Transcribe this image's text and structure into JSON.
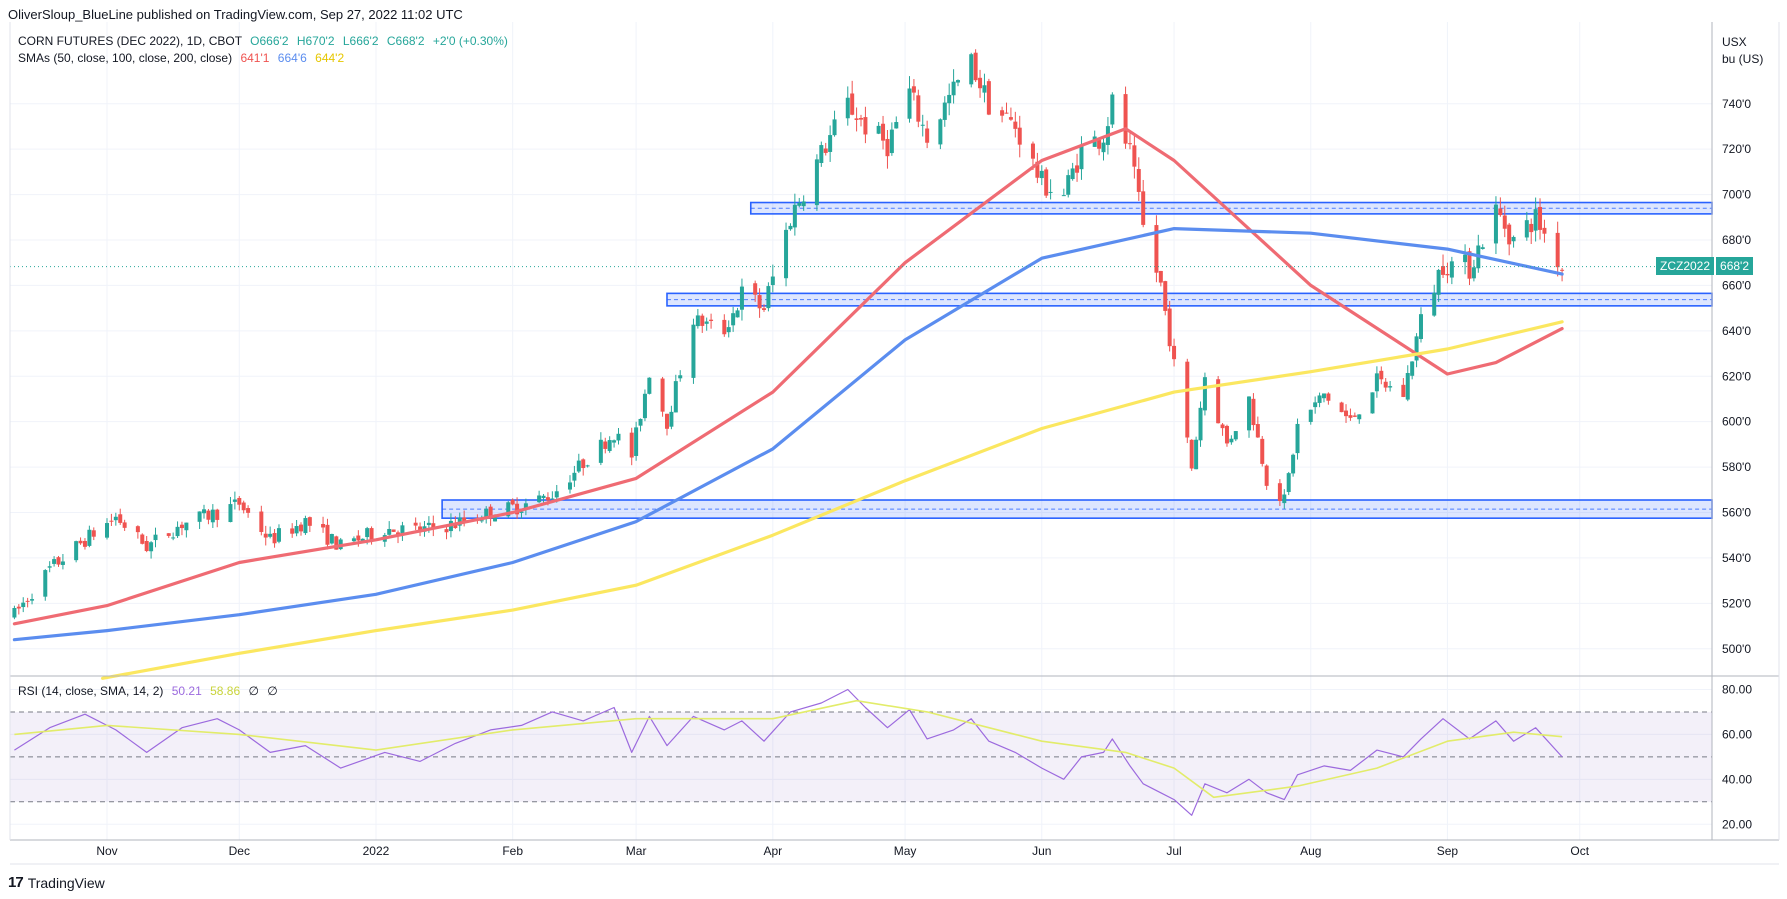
{
  "header": {
    "published_line": "OliverSloup_BlueLine published on TradingView.com, Sep 27, 2022 11:02 UTC"
  },
  "legend": {
    "instrument": "CORN FUTURES (DEC 2022), 1D, CBOT",
    "open": "O666'2",
    "high": "H670'2",
    "low": "L666'2",
    "close": "C668'2",
    "change": "+2'0 (+0.30%)",
    "sma_label": "SMAs (50, close, 100, close, 200, close)",
    "sma50_value": "641'1",
    "sma100_value": "664'6",
    "sma200_value": "644'2",
    "rsi_label": "RSI (14, close, SMA, 14, 2)",
    "rsi_value": "50.21",
    "rsi_sma_value": "58.86",
    "rsi_extra1": "∅",
    "rsi_extra2": "∅"
  },
  "price_axis": {
    "unit_line1": "USX",
    "unit_line2": "bu (US)",
    "current_symbol": "ZCZ2022",
    "current_price": "668'2"
  },
  "footer": {
    "brand": "TradingView"
  },
  "colors": {
    "up": "#26a69a",
    "down": "#ef5350",
    "sma50": "#ef6b73",
    "sma100": "#5b8def",
    "sma200": "#fbe760",
    "rsi": "#9c6ade",
    "rsi_sma": "#e2ec6a",
    "zone": "#2962ff"
  },
  "chart_data": [
    {
      "type": "candlestick",
      "title": "CORN FUTURES (DEC 2022), 1D, CBOT",
      "ylabel": "USX bu (US)",
      "ylim": [
        488,
        776
      ],
      "xlim": [
        "2021-10-10",
        "2022-10-31"
      ],
      "x_ticks": [
        {
          "label": "Nov",
          "date": "2021-11-01"
        },
        {
          "label": "Dec",
          "date": "2021-12-01"
        },
        {
          "label": "2022",
          "date": "2022-01-01"
        },
        {
          "label": "Feb",
          "date": "2022-02-01"
        },
        {
          "label": "Mar",
          "date": "2022-03-01"
        },
        {
          "label": "Apr",
          "date": "2022-04-01"
        },
        {
          "label": "May",
          "date": "2022-05-01"
        },
        {
          "label": "Jun",
          "date": "2022-06-01"
        },
        {
          "label": "Jul",
          "date": "2022-07-01"
        },
        {
          "label": "Aug",
          "date": "2022-08-01"
        },
        {
          "label": "Sep",
          "date": "2022-09-01"
        },
        {
          "label": "Oct",
          "date": "2022-10-01"
        }
      ],
      "y_ticks": [
        {
          "label": "500'0",
          "value": 500
        },
        {
          "label": "520'0",
          "value": 520
        },
        {
          "label": "540'0",
          "value": 540
        },
        {
          "label": "560'0",
          "value": 560
        },
        {
          "label": "580'0",
          "value": 580
        },
        {
          "label": "600'0",
          "value": 600
        },
        {
          "label": "620'0",
          "value": 620
        },
        {
          "label": "640'0",
          "value": 640
        },
        {
          "label": "660'0",
          "value": 660
        },
        {
          "label": "680'0",
          "value": 680
        },
        {
          "label": "700'0",
          "value": 700
        },
        {
          "label": "720'0",
          "value": 720
        },
        {
          "label": "740'0",
          "value": 740
        }
      ],
      "price_path": [
        [
          "2021-10-11",
          515
        ],
        [
          "2021-10-19",
          535
        ],
        [
          "2021-10-27",
          548
        ],
        [
          "2021-11-03",
          558
        ],
        [
          "2021-11-10",
          545
        ],
        [
          "2021-11-18",
          555
        ],
        [
          "2021-11-26",
          560
        ],
        [
          "2021-12-01",
          564
        ],
        [
          "2021-12-08",
          548
        ],
        [
          "2021-12-16",
          556
        ],
        [
          "2021-12-24",
          545
        ],
        [
          "2022-01-03",
          553
        ],
        [
          "2022-01-11",
          552
        ],
        [
          "2022-01-19",
          555
        ],
        [
          "2022-01-27",
          560
        ],
        [
          "2022-02-03",
          563
        ],
        [
          "2022-02-10",
          568
        ],
        [
          "2022-02-17",
          582
        ],
        [
          "2022-02-24",
          595
        ],
        [
          "2022-02-28",
          585
        ],
        [
          "2022-03-04",
          622
        ],
        [
          "2022-03-08",
          600
        ],
        [
          "2022-03-14",
          645
        ],
        [
          "2022-03-21",
          640
        ],
        [
          "2022-03-25",
          656
        ],
        [
          "2022-03-30",
          650
        ],
        [
          "2022-04-05",
          690
        ],
        [
          "2022-04-12",
          718
        ],
        [
          "2022-04-18",
          740
        ],
        [
          "2022-04-22",
          730
        ],
        [
          "2022-04-27",
          722
        ],
        [
          "2022-05-02",
          745
        ],
        [
          "2022-05-06",
          725
        ],
        [
          "2022-05-12",
          746
        ],
        [
          "2022-05-16",
          758
        ],
        [
          "2022-05-20",
          740
        ],
        [
          "2022-05-26",
          730
        ],
        [
          "2022-06-01",
          705
        ],
        [
          "2022-06-06",
          700
        ],
        [
          "2022-06-10",
          720
        ],
        [
          "2022-06-15",
          726
        ],
        [
          "2022-06-17",
          740
        ],
        [
          "2022-06-21",
          718
        ],
        [
          "2022-06-24",
          685
        ],
        [
          "2022-06-28",
          660
        ],
        [
          "2022-07-01",
          625
        ],
        [
          "2022-07-05",
          580
        ],
        [
          "2022-07-08",
          620
        ],
        [
          "2022-07-13",
          590
        ],
        [
          "2022-07-18",
          610
        ],
        [
          "2022-07-22",
          575
        ],
        [
          "2022-07-26",
          565
        ],
        [
          "2022-07-29",
          598
        ],
        [
          "2022-08-04",
          612
        ],
        [
          "2022-08-10",
          600
        ],
        [
          "2022-08-16",
          618
        ],
        [
          "2022-08-22",
          612
        ],
        [
          "2022-08-26",
          645
        ],
        [
          "2022-08-31",
          670
        ],
        [
          "2022-09-06",
          668
        ],
        [
          "2022-09-12",
          693
        ],
        [
          "2022-09-16",
          680
        ],
        [
          "2022-09-21",
          690
        ],
        [
          "2022-09-27",
          668
        ]
      ],
      "series": [
        {
          "name": "SMA 50",
          "points": [
            [
              "2021-10-11",
              511
            ],
            [
              "2021-11-01",
              519
            ],
            [
              "2021-12-01",
              538
            ],
            [
              "2022-01-01",
              548
            ],
            [
              "2022-02-01",
              560
            ],
            [
              "2022-03-01",
              575
            ],
            [
              "2022-04-01",
              613
            ],
            [
              "2022-05-01",
              670
            ],
            [
              "2022-06-01",
              715
            ],
            [
              "2022-06-20",
              729
            ],
            [
              "2022-07-01",
              715
            ],
            [
              "2022-08-01",
              660
            ],
            [
              "2022-09-01",
              621
            ],
            [
              "2022-09-12",
              626
            ],
            [
              "2022-09-27",
              641
            ]
          ]
        },
        {
          "name": "SMA 100",
          "points": [
            [
              "2021-10-11",
              504
            ],
            [
              "2021-11-01",
              508
            ],
            [
              "2021-12-01",
              515
            ],
            [
              "2022-01-01",
              524
            ],
            [
              "2022-02-01",
              538
            ],
            [
              "2022-03-01",
              556
            ],
            [
              "2022-04-01",
              588
            ],
            [
              "2022-05-01",
              636
            ],
            [
              "2022-06-01",
              672
            ],
            [
              "2022-07-01",
              685
            ],
            [
              "2022-08-01",
              683
            ],
            [
              "2022-09-01",
              676
            ],
            [
              "2022-09-27",
              665
            ]
          ]
        },
        {
          "name": "SMA 200",
          "points": [
            [
              "2021-10-31",
              487
            ],
            [
              "2021-12-01",
              498
            ],
            [
              "2022-01-01",
              508
            ],
            [
              "2022-02-01",
              517
            ],
            [
              "2022-03-01",
              528
            ],
            [
              "2022-04-01",
              550
            ],
            [
              "2022-05-01",
              574
            ],
            [
              "2022-06-01",
              597
            ],
            [
              "2022-07-01",
              613
            ],
            [
              "2022-08-01",
              622
            ],
            [
              "2022-09-01",
              632
            ],
            [
              "2022-09-27",
              644
            ]
          ]
        }
      ],
      "zones": [
        {
          "start": "2022-03-27",
          "end": "2022-10-31",
          "low": 691.5,
          "high": 696.5
        },
        {
          "start": "2022-03-08",
          "end": "2022-10-31",
          "low": 651,
          "high": 656.5
        },
        {
          "start": "2022-01-16",
          "end": "2022-10-31",
          "low": 557.5,
          "high": 565.5
        }
      ],
      "annotations": []
    },
    {
      "type": "line",
      "title": "RSI (14, close, SMA, 14, 2)",
      "ylim": [
        13,
        86
      ],
      "y_ticks": [
        {
          "label": "20.00",
          "value": 20
        },
        {
          "label": "40.00",
          "value": 40
        },
        {
          "label": "60.00",
          "value": 60
        },
        {
          "label": "80.00",
          "value": 80
        }
      ],
      "bands": [
        30,
        50,
        70
      ],
      "series": [
        {
          "name": "RSI",
          "points": [
            [
              "2021-10-11",
              53
            ],
            [
              "2021-10-19",
              63
            ],
            [
              "2021-10-27",
              69
            ],
            [
              "2021-11-03",
              62
            ],
            [
              "2021-11-10",
              52
            ],
            [
              "2021-11-18",
              63
            ],
            [
              "2021-11-26",
              67
            ],
            [
              "2021-12-01",
              62
            ],
            [
              "2021-12-08",
              52
            ],
            [
              "2021-12-16",
              55
            ],
            [
              "2021-12-24",
              45
            ],
            [
              "2022-01-03",
              52
            ],
            [
              "2022-01-11",
              48
            ],
            [
              "2022-01-19",
              56
            ],
            [
              "2022-01-27",
              62
            ],
            [
              "2022-02-03",
              64
            ],
            [
              "2022-02-10",
              70
            ],
            [
              "2022-02-17",
              66
            ],
            [
              "2022-02-24",
              72
            ],
            [
              "2022-02-28",
              52
            ],
            [
              "2022-03-04",
              68
            ],
            [
              "2022-03-08",
              55
            ],
            [
              "2022-03-14",
              68
            ],
            [
              "2022-03-21",
              62
            ],
            [
              "2022-03-25",
              66
            ],
            [
              "2022-03-30",
              57
            ],
            [
              "2022-04-05",
              70
            ],
            [
              "2022-04-12",
              74
            ],
            [
              "2022-04-18",
              80
            ],
            [
              "2022-04-22",
              72
            ],
            [
              "2022-04-27",
              63
            ],
            [
              "2022-05-02",
              71
            ],
            [
              "2022-05-06",
              58
            ],
            [
              "2022-05-12",
              62
            ],
            [
              "2022-05-16",
              67
            ],
            [
              "2022-05-20",
              57
            ],
            [
              "2022-05-26",
              52
            ],
            [
              "2022-06-01",
              45
            ],
            [
              "2022-06-06",
              40
            ],
            [
              "2022-06-10",
              50
            ],
            [
              "2022-06-15",
              52
            ],
            [
              "2022-06-17",
              58
            ],
            [
              "2022-06-21",
              46
            ],
            [
              "2022-06-24",
              38
            ],
            [
              "2022-06-28",
              34
            ],
            [
              "2022-07-01",
              31
            ],
            [
              "2022-07-05",
              24
            ],
            [
              "2022-07-08",
              38
            ],
            [
              "2022-07-13",
              34
            ],
            [
              "2022-07-18",
              40
            ],
            [
              "2022-07-22",
              34
            ],
            [
              "2022-07-26",
              31
            ],
            [
              "2022-07-29",
              42
            ],
            [
              "2022-08-04",
              46
            ],
            [
              "2022-08-10",
              44
            ],
            [
              "2022-08-16",
              53
            ],
            [
              "2022-08-22",
              50
            ],
            [
              "2022-08-26",
              58
            ],
            [
              "2022-08-31",
              67
            ],
            [
              "2022-09-06",
              58
            ],
            [
              "2022-09-12",
              66
            ],
            [
              "2022-09-16",
              57
            ],
            [
              "2022-09-21",
              63
            ],
            [
              "2022-09-27",
              50
            ]
          ]
        },
        {
          "name": "RSI SMA",
          "points": [
            [
              "2021-10-11",
              60
            ],
            [
              "2021-11-01",
              64
            ],
            [
              "2021-12-01",
              60
            ],
            [
              "2022-01-01",
              53
            ],
            [
              "2022-02-01",
              62
            ],
            [
              "2022-03-01",
              67
            ],
            [
              "2022-04-01",
              67
            ],
            [
              "2022-04-20",
              75
            ],
            [
              "2022-05-06",
              70
            ],
            [
              "2022-06-01",
              57
            ],
            [
              "2022-06-20",
              52
            ],
            [
              "2022-07-01",
              45
            ],
            [
              "2022-07-10",
              32
            ],
            [
              "2022-07-29",
              37
            ],
            [
              "2022-08-16",
              45
            ],
            [
              "2022-09-01",
              57
            ],
            [
              "2022-09-16",
              61
            ],
            [
              "2022-09-27",
              59
            ]
          ]
        }
      ]
    }
  ]
}
